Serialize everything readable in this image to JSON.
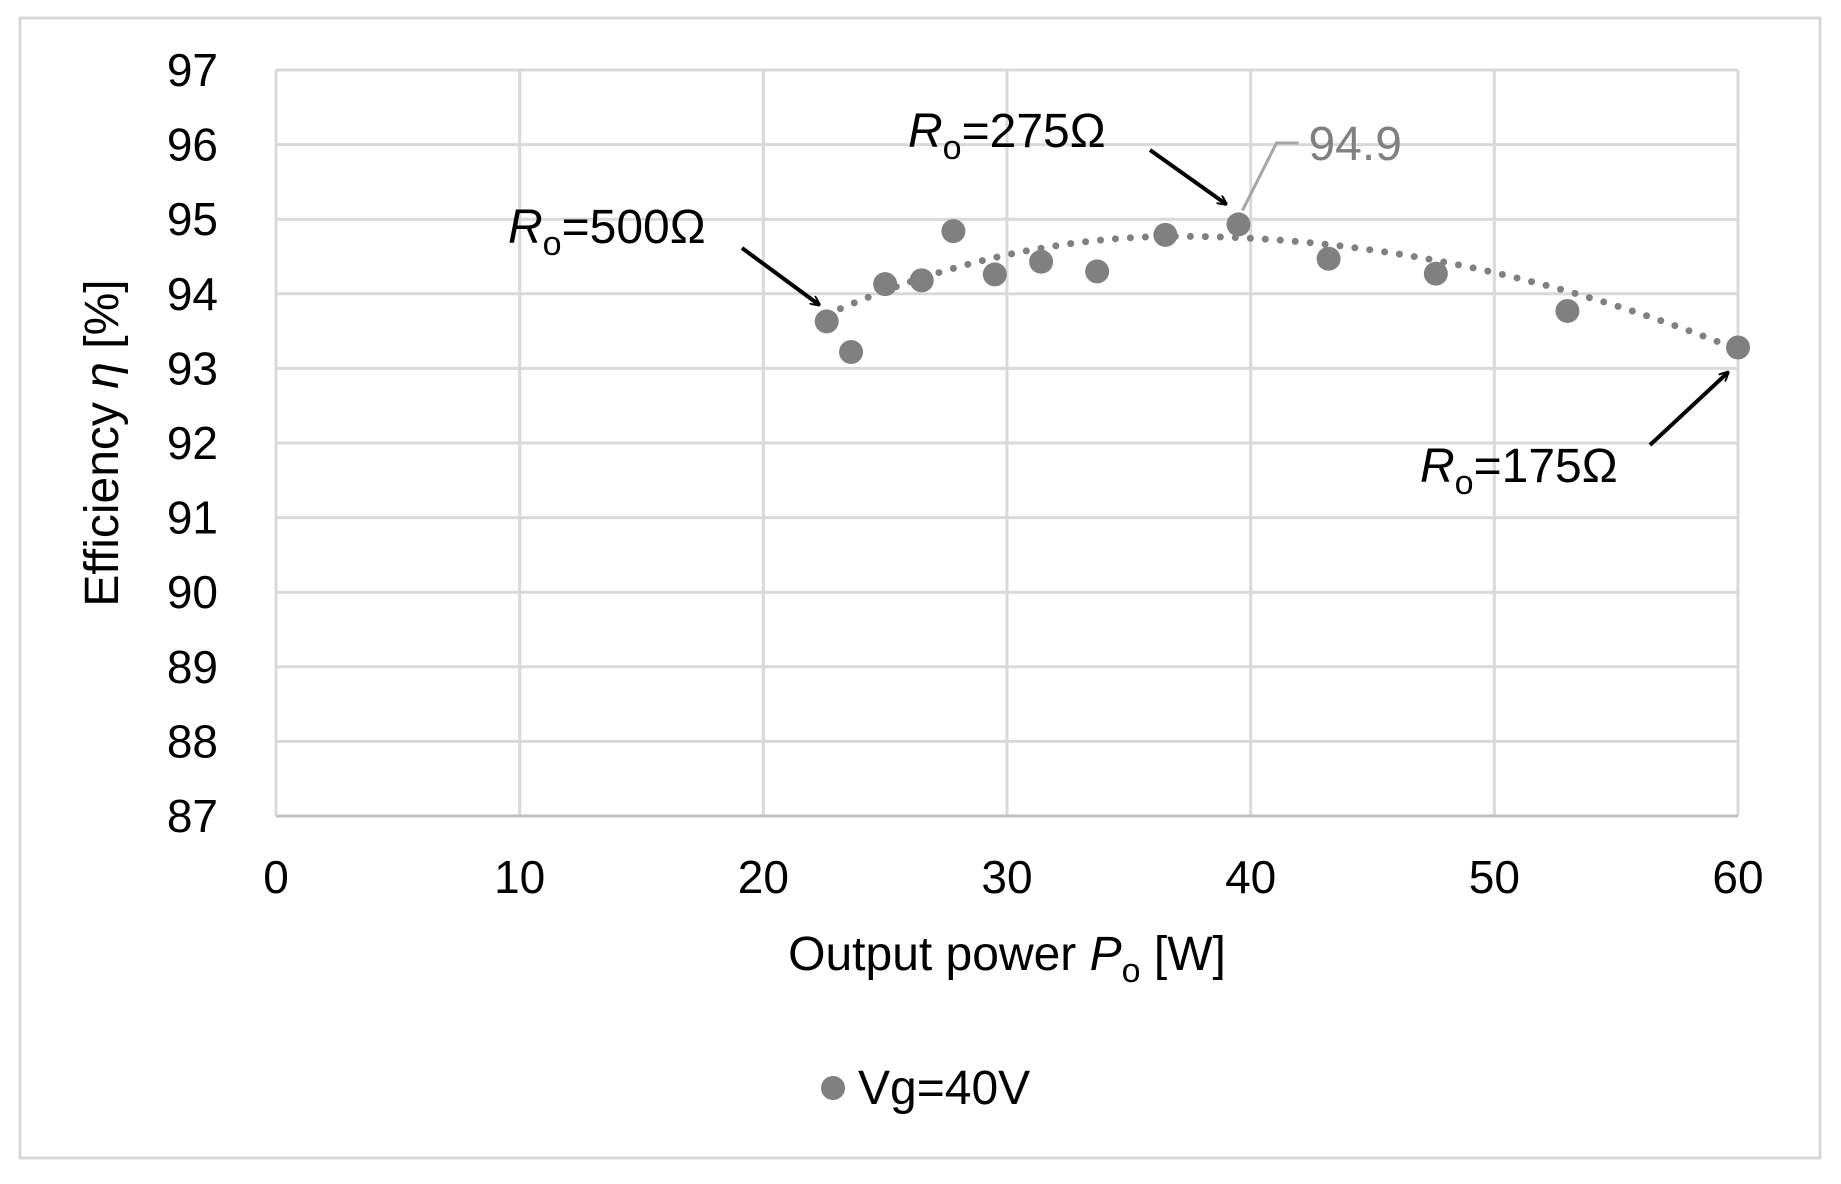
{
  "chart_data": {
    "type": "scatter",
    "x_axis": {
      "label_prefix": "Output power ",
      "label_var": "P",
      "label_sub": "o",
      "label_suffix": " [W]",
      "min": 0,
      "max": 60,
      "ticks": [
        0,
        10,
        20,
        30,
        40,
        50,
        60
      ]
    },
    "y_axis": {
      "label_prefix": "Efficiency ",
      "label_var": "η",
      "label_suffix": " [%]",
      "min": 87,
      "max": 97,
      "ticks": [
        87,
        88,
        89,
        90,
        91,
        92,
        93,
        94,
        95,
        96,
        97
      ]
    },
    "grid": true,
    "series": [
      {
        "name": "Vg=40V",
        "color": "#808080",
        "points": [
          {
            "x": 22.6,
            "y": 93.63
          },
          {
            "x": 23.6,
            "y": 93.22
          },
          {
            "x": 25.0,
            "y": 94.13
          },
          {
            "x": 26.5,
            "y": 94.18
          },
          {
            "x": 27.8,
            "y": 94.84
          },
          {
            "x": 29.5,
            "y": 94.26
          },
          {
            "x": 31.4,
            "y": 94.43
          },
          {
            "x": 33.7,
            "y": 94.3
          },
          {
            "x": 36.5,
            "y": 94.79
          },
          {
            "x": 39.5,
            "y": 94.93
          },
          {
            "x": 43.2,
            "y": 94.47
          },
          {
            "x": 47.6,
            "y": 94.27
          },
          {
            "x": 53.0,
            "y": 93.77
          },
          {
            "x": 60.0,
            "y": 93.28
          }
        ]
      }
    ],
    "trendline": {
      "style": "dotted",
      "color": "#808080",
      "type": "polynomial",
      "order": 2,
      "x_range": [
        22.6,
        60.0
      ],
      "points": [
        {
          "x": 22.6,
          "y": 93.72
        },
        {
          "x": 60.0,
          "y": 93.25
        }
      ],
      "peak": {
        "x": 37.0,
        "y": 94.77
      }
    },
    "data_label": {
      "text": "94.9",
      "point": {
        "x": 39.5,
        "y": 94.93
      },
      "color": "#808080"
    },
    "annotations": [
      {
        "var": "R",
        "sub": "o",
        "text": "=500Ω",
        "target": {
          "x": 22.3,
          "y": 93.85
        }
      },
      {
        "var": "R",
        "sub": "o",
        "text": "=275Ω",
        "target": {
          "x": 39.0,
          "y": 95.2
        }
      },
      {
        "var": "R",
        "sub": "o",
        "text": "=175Ω",
        "target": {
          "x": 59.6,
          "y": 92.95
        }
      }
    ],
    "legend": {
      "position": "bottom",
      "label": "Vg=40V"
    }
  }
}
